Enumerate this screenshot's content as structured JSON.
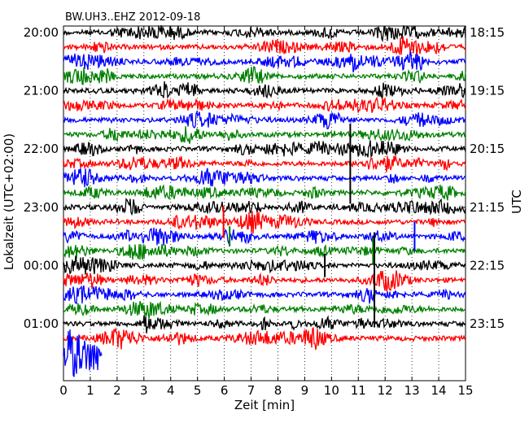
{
  "chart_data": {
    "type": "line",
    "title": "BW.UH3..EHZ 2012-09-18",
    "xlabel": "Zeit  [min]",
    "ylabel_left": "Lokalzeit (UTC+02:00)",
    "ylabel_right": "UTC",
    "xlim": [
      0,
      15
    ],
    "x_ticks": [
      "0",
      "1",
      "2",
      "3",
      "4",
      "5",
      "6",
      "7",
      "8",
      "9",
      "10",
      "11",
      "12",
      "13",
      "14",
      "15"
    ],
    "grid": "vertical dotted",
    "row_interval_min": 15,
    "left_ticks": [
      {
        "row": 0,
        "label": "20:00"
      },
      {
        "row": 4,
        "label": "21:00"
      },
      {
        "row": 8,
        "label": "22:00"
      },
      {
        "row": 12,
        "label": "23:00"
      },
      {
        "row": 16,
        "label": "00:00"
      },
      {
        "row": 20,
        "label": "01:00"
      }
    ],
    "right_ticks": [
      {
        "row": 0,
        "label": "18:15"
      },
      {
        "row": 4,
        "label": "19:15"
      },
      {
        "row": 8,
        "label": "20:15"
      },
      {
        "row": 12,
        "label": "21:15"
      },
      {
        "row": 16,
        "label": "22:15"
      },
      {
        "row": 20,
        "label": "23:15"
      }
    ],
    "colors": [
      "#000000",
      "#ff0000",
      "#0000ff",
      "#008000"
    ],
    "series": [
      {
        "row": 0,
        "x_end": 15,
        "color": "#000000"
      },
      {
        "row": 1,
        "x_end": 15,
        "color": "#ff0000"
      },
      {
        "row": 2,
        "x_end": 15,
        "color": "#0000ff"
      },
      {
        "row": 3,
        "x_end": 15,
        "color": "#008000"
      },
      {
        "row": 4,
        "x_end": 15,
        "color": "#000000"
      },
      {
        "row": 5,
        "x_end": 15,
        "color": "#ff0000"
      },
      {
        "row": 6,
        "x_end": 15,
        "color": "#0000ff"
      },
      {
        "row": 7,
        "x_end": 15,
        "color": "#008000"
      },
      {
        "row": 8,
        "x_end": 15,
        "color": "#000000"
      },
      {
        "row": 9,
        "x_end": 15,
        "color": "#ff0000"
      },
      {
        "row": 10,
        "x_end": 15,
        "color": "#0000ff"
      },
      {
        "row": 11,
        "x_end": 15,
        "color": "#008000"
      },
      {
        "row": 12,
        "x_end": 15,
        "color": "#000000"
      },
      {
        "row": 13,
        "x_end": 15,
        "color": "#ff0000"
      },
      {
        "row": 14,
        "x_end": 15,
        "color": "#0000ff"
      },
      {
        "row": 15,
        "x_end": 15,
        "color": "#008000"
      },
      {
        "row": 16,
        "x_end": 15,
        "color": "#000000"
      },
      {
        "row": 17,
        "x_end": 15,
        "color": "#ff0000"
      },
      {
        "row": 18,
        "x_end": 15,
        "color": "#0000ff"
      },
      {
        "row": 19,
        "x_end": 15,
        "color": "#008000"
      },
      {
        "row": 20,
        "x_end": 15,
        "color": "#000000"
      },
      {
        "row": 21,
        "x_end": 15,
        "color": "#ff0000"
      },
      {
        "row": 22,
        "x_end": 1.45,
        "color": "#0000ff"
      }
    ],
    "events": [
      {
        "row": 9,
        "x": 10.7,
        "amp": 5.5,
        "color": "#000000"
      },
      {
        "row": 13,
        "x": 5.97,
        "amp": 2.2,
        "color": "#ff0000"
      },
      {
        "row": 14,
        "x": 13.1,
        "amp": 2.0,
        "color": "#0000ff"
      },
      {
        "row": 15,
        "x": 11.55,
        "amp": 1.8,
        "color": "#008000"
      },
      {
        "row": 16,
        "x": 9.75,
        "amp": 1.6,
        "color": "#000000"
      },
      {
        "row": 17,
        "x": 11.6,
        "amp": 6.5,
        "color": "#000000"
      },
      {
        "row": 14,
        "x": 6.2,
        "amp": 1.4,
        "color": "#008000"
      }
    ]
  }
}
